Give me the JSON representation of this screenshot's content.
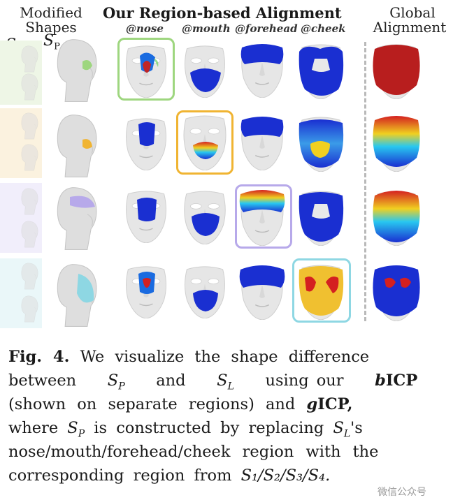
{
  "header": {
    "modified": "Modified",
    "shapes": "Shapes",
    "title": "Our Region-based Alignment",
    "global_line1": "Global",
    "global_line2": "Alignment",
    "regions": [
      "@nose",
      "@mouth",
      "@forehead",
      "@cheek"
    ]
  },
  "labels": {
    "sl": "S",
    "sl_sub": "L",
    "sp": "S",
    "sp_sub": "P",
    "rows": [
      {
        "s": "S",
        "sub": "1"
      },
      {
        "s": "S",
        "sub": "2"
      },
      {
        "s": "S",
        "sub": "3"
      },
      {
        "s": "S",
        "sub": "4"
      }
    ]
  },
  "colors": {
    "nose_box": "#9ed67f",
    "mouth_box": "#f0b432",
    "forehead_box": "#b7a9ea",
    "cheek_box": "#8ed7e3",
    "heat_low": "#1a2fd1",
    "heat_high": "#d42020",
    "face_base": "#e9e9e9"
  },
  "caption": {
    "fig_label": "Fig. 4.",
    "line1": "We visualize the shape difference",
    "line2_a": "between",
    "line2_b": "and",
    "line2_c": "using our",
    "line2_d": "ICP",
    "line3_a": "(shown on separate regions) and",
    "line3_b": "ICP,",
    "line4_a": "where",
    "line4_b": "is constructed by replacing",
    "line4_c": "'s",
    "line5": "nose/mouth/forehead/cheek region with the",
    "line6_a": "corresponding region from",
    "b_letter": "b",
    "g_letter": "g",
    "seq": "S₁/S₂/S₃/S₄."
  },
  "watermark": "微信公众号"
}
